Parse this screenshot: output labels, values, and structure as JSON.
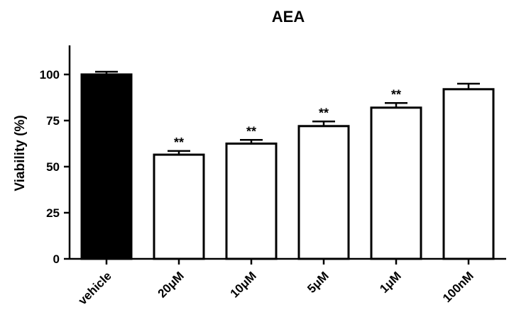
{
  "chart_data": {
    "type": "bar",
    "title": "AEA",
    "xlabel": "",
    "ylabel": "Viability (%)",
    "ylim": [
      0,
      115
    ],
    "yticks": [
      0,
      25,
      50,
      75,
      100
    ],
    "categories": [
      "vehicle",
      "20μM",
      "10μM",
      "5μM",
      "1μM",
      "100nM"
    ],
    "values": [
      100,
      56.5,
      62.5,
      72,
      82,
      92
    ],
    "errors": [
      1.5,
      2,
      2,
      2.5,
      2.5,
      3
    ],
    "significance": [
      "",
      "**",
      "**",
      "**",
      "**",
      ""
    ],
    "bar_fills": [
      "#000000",
      "#ffffff",
      "#ffffff",
      "#ffffff",
      "#ffffff",
      "#ffffff"
    ],
    "grid": false,
    "legend": "none"
  }
}
